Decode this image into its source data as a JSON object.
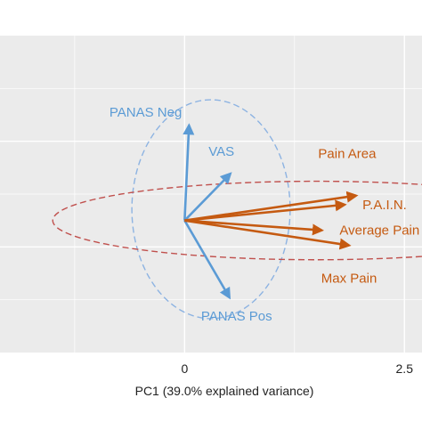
{
  "chart_data": {
    "type": "scatter",
    "subtype": "pca-biplot",
    "xlabel": "PC1 (39.0% explained variance)",
    "x_ticks": [
      0,
      2.5
    ],
    "x_tick_labels": [
      "0",
      "2.5"
    ],
    "xlim": [
      -2.1,
      2.7
    ],
    "ylim": [
      -1.75,
      2.45
    ],
    "grid": true,
    "vectors": [
      {
        "name": "PANAS Neg",
        "group": "psych",
        "x": 0.05,
        "y": 1.26
      },
      {
        "name": "VAS",
        "group": "psych",
        "x": 0.52,
        "y": 0.62
      },
      {
        "name": "PANAS Pos",
        "group": "psych",
        "x": 0.51,
        "y": -1.02
      },
      {
        "name": "Pain Area",
        "group": "pain",
        "x": 1.95,
        "y": 0.33
      },
      {
        "name": "P.A.I.N.",
        "group": "pain",
        "x": 1.82,
        "y": 0.21
      },
      {
        "name": "Average Pain",
        "group": "pain",
        "x": 1.56,
        "y": -0.13
      },
      {
        "name": "Max Pain",
        "group": "pain",
        "x": 1.87,
        "y": -0.33
      }
    ],
    "ellipses": [
      {
        "group": "psych",
        "cx": 0.3,
        "cy": 0.15,
        "rx": 0.9,
        "ry": 1.45
      },
      {
        "group": "pain",
        "cx": 1.5,
        "cy": 0.0,
        "rx": 3.0,
        "ry": 0.52
      }
    ],
    "colors": {
      "psych": "#5b9bd5",
      "pain": "#c55a11",
      "psych_ellipse": "#8db3e2",
      "pain_ellipse": "#c0504d",
      "panel": "#ebebeb",
      "grid": "#ffffff"
    }
  }
}
